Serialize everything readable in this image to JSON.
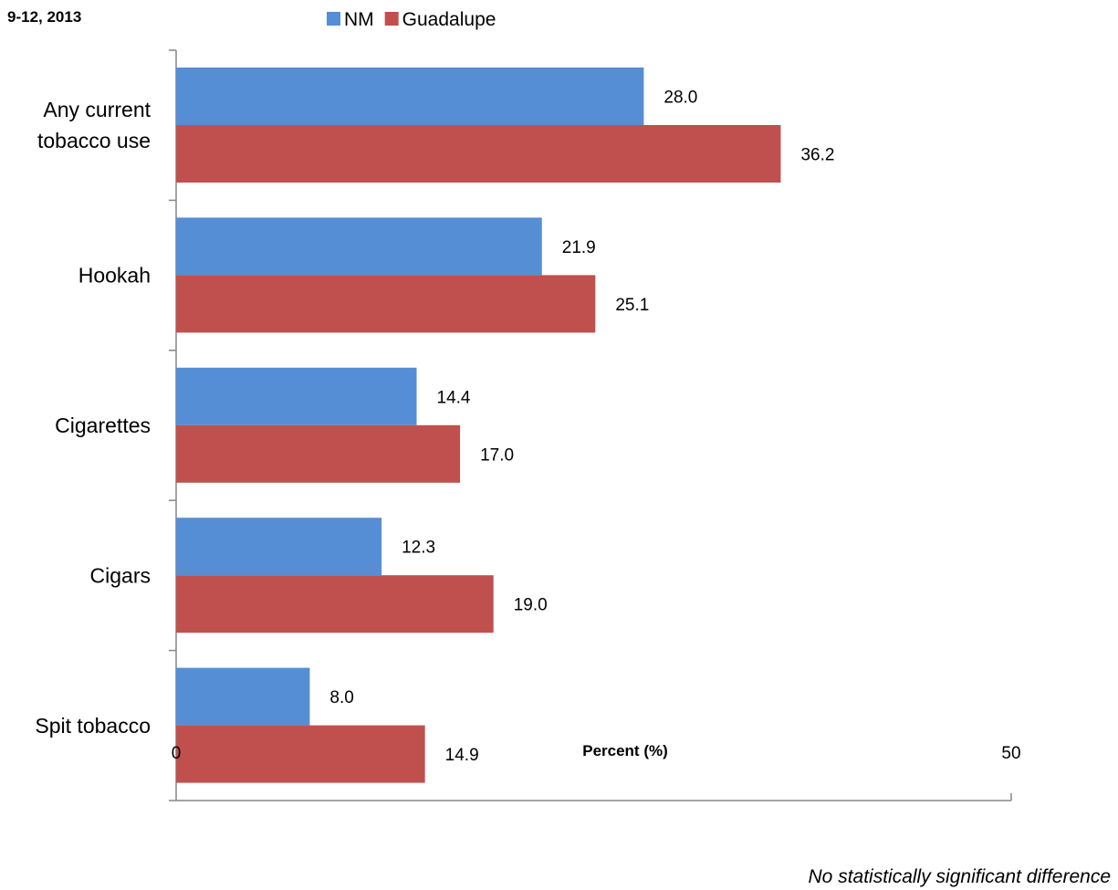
{
  "chart_data": {
    "type": "bar",
    "orientation": "horizontal",
    "subtitle": "9-12, 2013",
    "categories": [
      "Any current tobacco use",
      "Hookah",
      "Cigarettes",
      "Cigars",
      "Spit tobacco"
    ],
    "category_label_lines": [
      [
        "Any current",
        "tobacco use"
      ],
      [
        "Hookah"
      ],
      [
        "Cigarettes"
      ],
      [
        "Cigars"
      ],
      [
        "Spit tobacco"
      ]
    ],
    "series": [
      {
        "name": "NM",
        "color": "#558ED5",
        "values": [
          28.0,
          21.9,
          14.4,
          12.3,
          8.0
        ],
        "labels": [
          "28.0",
          "21.9",
          "14.4",
          "12.3",
          "8.0"
        ]
      },
      {
        "name": "Guadalupe",
        "color": "#C0504D",
        "values": [
          36.2,
          25.1,
          17.0,
          19.0,
          14.9
        ],
        "labels": [
          "36.2",
          "25.1",
          "17.0",
          "19.0",
          "14.9"
        ]
      }
    ],
    "xlabel": "Percent (%)",
    "xlim": [
      0,
      50
    ],
    "tick_labels": [
      "0",
      "50"
    ],
    "grid": false,
    "legend_position": "top",
    "note": "No statistically significant difference"
  }
}
